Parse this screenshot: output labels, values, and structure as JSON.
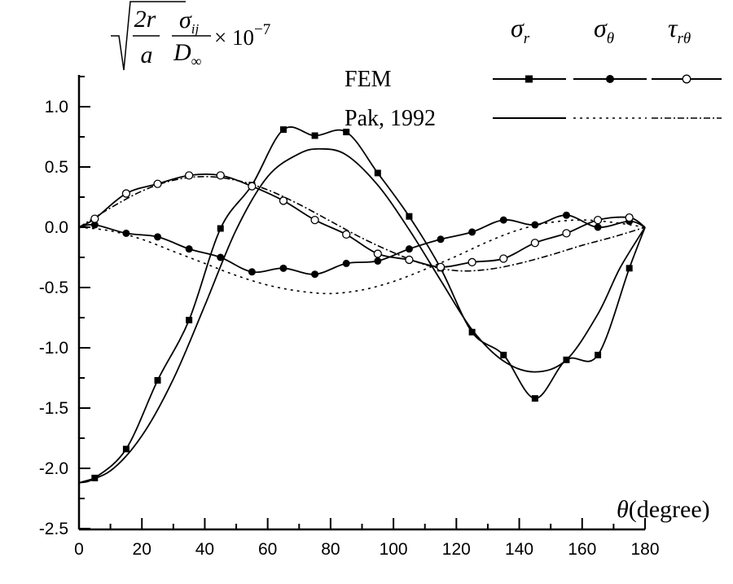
{
  "chart_data": {
    "type": "line",
    "xlabel_symbol": "θ",
    "xlabel_unit": "(degree)",
    "ylabel": {
      "sqrt_num": "2r",
      "sqrt_den": "a",
      "frac_num": "σ",
      "frac_num_sub": "ij",
      "frac_den": "D",
      "frac_den_sub": "∞",
      "times": "× 10",
      "exponent": "−7"
    },
    "xlim": [
      0,
      180
    ],
    "ylim": [
      -2.5,
      1.25
    ],
    "x_ticks": [
      "0",
      "20",
      "40",
      "60",
      "80",
      "100",
      "120",
      "140",
      "160",
      "180"
    ],
    "y_ticks": [
      "1.0",
      "0.5",
      "0.0",
      "-0.5",
      "-1.0",
      "-1.5",
      "-2.0",
      "-2.5"
    ],
    "legend": {
      "placement": "top-right",
      "row_labels": [
        "FEM",
        "Pak, 1992"
      ],
      "columns": [
        {
          "sym": "σ",
          "sub": "r"
        },
        {
          "sym": "σ",
          "sub": "θ"
        },
        {
          "sym": "τ",
          "sub": "rθ"
        }
      ]
    },
    "series": [
      {
        "key": "sr_fem",
        "group": "sigma_r",
        "source": "FEM",
        "marker": "square",
        "dash": "solid",
        "x": [
          0,
          5,
          15,
          25,
          35,
          45,
          55,
          65,
          75,
          85,
          95,
          105,
          115,
          125,
          135,
          145,
          155,
          165,
          175,
          180
        ],
        "y": [
          -2.12,
          -2.08,
          -1.84,
          -1.27,
          -0.77,
          -0.01,
          0.35,
          0.81,
          0.76,
          0.79,
          0.45,
          0.09,
          -0.34,
          -0.87,
          -1.06,
          -1.42,
          -1.1,
          -1.06,
          -0.34,
          0.0
        ]
      },
      {
        "key": "st_fem",
        "group": "sigma_theta",
        "source": "FEM",
        "marker": "circle",
        "dash": "solid",
        "x": [
          0,
          5,
          15,
          25,
          35,
          45,
          55,
          65,
          75,
          85,
          95,
          105,
          115,
          125,
          135,
          145,
          155,
          165,
          175,
          180
        ],
        "y": [
          0.0,
          0.02,
          -0.05,
          -0.08,
          -0.18,
          -0.25,
          -0.37,
          -0.34,
          -0.39,
          -0.3,
          -0.28,
          -0.18,
          -0.1,
          -0.04,
          0.06,
          0.02,
          0.1,
          0.0,
          0.05,
          0.0
        ]
      },
      {
        "key": "trt_fem",
        "group": "tau_rtheta",
        "source": "FEM",
        "marker": "open-circle",
        "dash": "solid",
        "x": [
          0,
          5,
          15,
          25,
          35,
          45,
          55,
          65,
          75,
          85,
          95,
          105,
          115,
          125,
          135,
          145,
          155,
          165,
          175,
          180
        ],
        "y": [
          0.0,
          0.07,
          0.28,
          0.36,
          0.43,
          0.43,
          0.34,
          0.22,
          0.06,
          -0.06,
          -0.22,
          -0.27,
          -0.33,
          -0.29,
          -0.26,
          -0.13,
          -0.05,
          0.06,
          0.08,
          0.0
        ]
      },
      {
        "key": "sr_pak",
        "group": "sigma_r",
        "source": "Pak, 1992",
        "marker": "none",
        "dash": "solid",
        "x": [
          0,
          10,
          20,
          30,
          40,
          50,
          60,
          70,
          77,
          85,
          95,
          105,
          115,
          125,
          135,
          145,
          155,
          165,
          172,
          180
        ],
        "y": [
          -2.12,
          -2.02,
          -1.73,
          -1.26,
          -0.65,
          -0.02,
          0.42,
          0.61,
          0.65,
          0.6,
          0.35,
          -0.02,
          -0.44,
          -0.85,
          -1.11,
          -1.2,
          -1.1,
          -0.72,
          -0.34,
          0.0
        ]
      },
      {
        "key": "st_pak",
        "group": "sigma_theta",
        "source": "Pak, 1992",
        "marker": "none",
        "dash": "dot",
        "x": [
          0,
          10,
          20,
          30,
          40,
          50,
          60,
          70,
          80,
          90,
          100,
          110,
          120,
          130,
          140,
          150,
          160,
          170,
          180
        ],
        "y": [
          0.0,
          -0.03,
          -0.1,
          -0.2,
          -0.3,
          -0.4,
          -0.48,
          -0.53,
          -0.55,
          -0.52,
          -0.45,
          -0.35,
          -0.24,
          -0.12,
          -0.02,
          0.04,
          0.06,
          0.04,
          0.0
        ]
      },
      {
        "key": "trt_pak",
        "group": "tau_rtheta",
        "source": "Pak, 1992",
        "marker": "none",
        "dash": "dashdot",
        "x": [
          0,
          10,
          20,
          30,
          40,
          50,
          60,
          70,
          80,
          90,
          100,
          110,
          120,
          130,
          140,
          150,
          160,
          170,
          180
        ],
        "y": [
          0.0,
          0.16,
          0.3,
          0.39,
          0.42,
          0.39,
          0.31,
          0.19,
          0.05,
          -0.09,
          -0.21,
          -0.31,
          -0.36,
          -0.35,
          -0.3,
          -0.23,
          -0.15,
          -0.08,
          0.0
        ]
      }
    ]
  }
}
